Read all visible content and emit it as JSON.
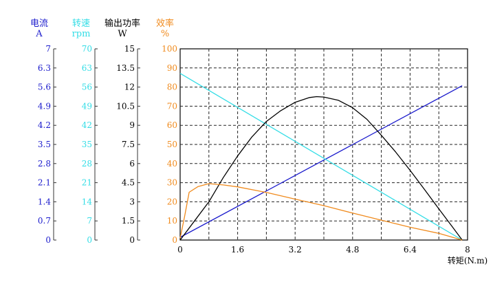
{
  "chart_data": {
    "type": "line",
    "xlabel": "转矩(N.m)",
    "xticks": [
      "0",
      "1.6",
      "3.2",
      "4.8",
      "6.4",
      "8"
    ],
    "xlim": [
      0,
      8
    ],
    "grid": true,
    "axes": [
      {
        "id": "current",
        "title": "电流",
        "unit": "A",
        "color": "#1a1acc",
        "ticks": [
          "0",
          "0.7",
          "1.4",
          "2.1",
          "2.8",
          "3.5",
          "4.2",
          "4.9",
          "5.6",
          "6.3",
          "7"
        ],
        "ylim": [
          0,
          7
        ]
      },
      {
        "id": "speed",
        "title": "转速",
        "unit": "rpm",
        "color": "#33dde6",
        "ticks": [
          "0",
          "7",
          "14",
          "21",
          "28",
          "35",
          "42",
          "49",
          "56",
          "63",
          "70"
        ],
        "ylim": [
          0,
          70
        ]
      },
      {
        "id": "power",
        "title": "输出功率",
        "unit": "W",
        "color": "#000000",
        "ticks": [
          "0",
          "1.5",
          "3",
          "4.5",
          "6",
          "7.5",
          "9",
          "10.5",
          "12",
          "13.5",
          "15"
        ],
        "ylim": [
          0,
          15
        ]
      },
      {
        "id": "efficiency",
        "title": "效率",
        "unit": "%",
        "color": "#f08a1c",
        "ticks": [
          "0",
          "10",
          "20",
          "30",
          "40",
          "50",
          "60",
          "70",
          "80",
          "90",
          "100"
        ],
        "ylim": [
          0,
          100
        ]
      }
    ],
    "series": [
      {
        "axis": "current",
        "color": "#1a1acc",
        "x": [
          0,
          7.85
        ],
        "y": [
          0.1,
          5.65
        ]
      },
      {
        "axis": "speed",
        "color": "#33dde6",
        "x": [
          0,
          7.85
        ],
        "y": [
          61,
          0
        ]
      },
      {
        "axis": "power",
        "color": "#000000",
        "x": [
          0,
          0.4,
          0.8,
          1.2,
          1.6,
          2.0,
          2.4,
          2.8,
          3.2,
          3.6,
          3.8,
          4.0,
          4.4,
          4.8,
          5.2,
          5.6,
          6.0,
          6.4,
          6.8,
          7.2,
          7.6,
          7.85
        ],
        "y": [
          0,
          1.5,
          3.0,
          4.9,
          6.6,
          8.1,
          9.3,
          10.15,
          10.81,
          11.18,
          11.25,
          11.22,
          10.97,
          10.38,
          9.47,
          8.22,
          6.9,
          5.47,
          3.97,
          2.45,
          0.95,
          0
        ]
      },
      {
        "axis": "efficiency",
        "color": "#f08a1c",
        "x": [
          0,
          0.12,
          0.25,
          0.5,
          0.8,
          1.2,
          1.6,
          2.4,
          3.2,
          4.0,
          4.8,
          5.6,
          6.4,
          7.2,
          7.85
        ],
        "y": [
          1,
          12,
          25,
          28,
          29.5,
          28.8,
          27.8,
          24.9,
          21.4,
          18,
          14.1,
          10.4,
          6.7,
          3.5,
          0
        ]
      }
    ]
  }
}
